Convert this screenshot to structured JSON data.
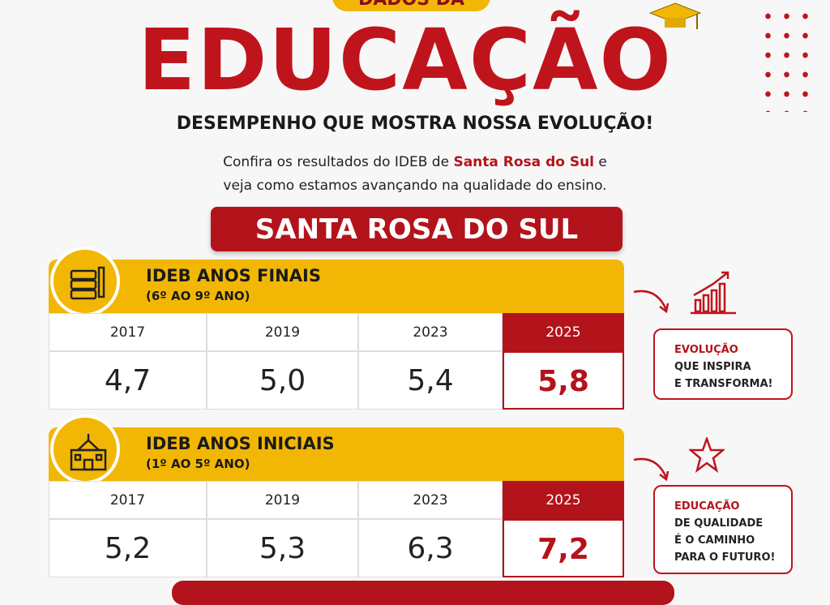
{
  "header": {
    "top_label": "DADOS DA",
    "title": "EDUCAÇÃO",
    "subtitle": "DESEMPENHO QUE MOSTRA NOSSA EVOLUÇÃO!",
    "intro": [
      "Confira os resultados do IDEB de",
      "Santa Rosa do Sul",
      "e veja como estamos avançando na qualidade do ensino."
    ]
  },
  "city": "SANTA ROSA DO SUL",
  "sections": [
    {
      "title": "IDEB ANOS FINAIS",
      "subtitle": "(6º AO 9º ANO)",
      "years": [
        "2017",
        "2019",
        "2023",
        "2025"
      ],
      "values": [
        "4,7",
        "5,0",
        "5,4",
        "5,8"
      ],
      "note": {
        "highlight": "EVOLUÇÃO",
        "lines": [
          "QUE INSPIRA",
          "E TRANSFORMA!"
        ]
      }
    },
    {
      "title": "IDEB ANOS INICIAIS",
      "subtitle": "(1º AO 5º ANO)",
      "years": [
        "2017",
        "2019",
        "2023",
        "2025"
      ],
      "values": [
        "5,2",
        "5,3",
        "6,3",
        "7,2"
      ],
      "note": {
        "highlight": "EDUCAÇÃO",
        "lines": [
          "DE QUALIDADE",
          "É O CAMINHO",
          "PARA O FUTURO!"
        ]
      }
    }
  ]
}
